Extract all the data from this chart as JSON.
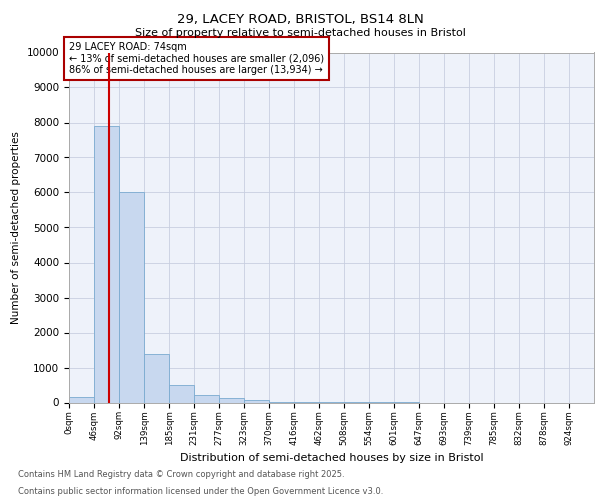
{
  "title_line1": "29, LACEY ROAD, BRISTOL, BS14 8LN",
  "title_line2": "Size of property relative to semi-detached houses in Bristol",
  "xlabel": "Distribution of semi-detached houses by size in Bristol",
  "ylabel": "Number of semi-detached properties",
  "bin_labels": [
    "0sqm",
    "46sqm",
    "92sqm",
    "139sqm",
    "185sqm",
    "231sqm",
    "277sqm",
    "323sqm",
    "370sqm",
    "416sqm",
    "462sqm",
    "508sqm",
    "554sqm",
    "601sqm",
    "647sqm",
    "693sqm",
    "739sqm",
    "785sqm",
    "832sqm",
    "878sqm",
    "924sqm"
  ],
  "bin_edges": [
    0,
    46,
    92,
    139,
    185,
    231,
    277,
    323,
    370,
    416,
    462,
    508,
    554,
    601,
    647,
    693,
    739,
    785,
    832,
    878,
    924
  ],
  "bar_heights": [
    150,
    7900,
    6000,
    1400,
    500,
    220,
    130,
    60,
    20,
    5,
    3,
    2,
    1,
    1,
    0,
    0,
    0,
    0,
    0,
    0
  ],
  "bar_color": "#c8d8ef",
  "bar_edge_color": "#7aaad0",
  "property_size": 74,
  "vline_color": "#cc0000",
  "annotation_text": "29 LACEY ROAD: 74sqm\n← 13% of semi-detached houses are smaller (2,096)\n86% of semi-detached houses are larger (13,934) →",
  "annotation_box_color": "#aa0000",
  "ylim": [
    0,
    10000
  ],
  "yticks": [
    0,
    1000,
    2000,
    3000,
    4000,
    5000,
    6000,
    7000,
    8000,
    9000,
    10000
  ],
  "background_color": "#eef2fa",
  "grid_color": "#c8cfe0",
  "footer_line1": "Contains HM Land Registry data © Crown copyright and database right 2025.",
  "footer_line2": "Contains public sector information licensed under the Open Government Licence v3.0."
}
